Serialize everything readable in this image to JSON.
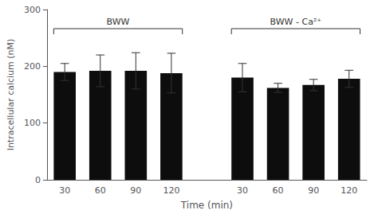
{
  "chart_data": {
    "type": "bar",
    "xlabel": "Time (min)",
    "ylabel": "Intracellular calcium (nM)",
    "series": [
      {
        "name": "BWW",
        "categories": [
          "30",
          "60",
          "90",
          "120"
        ],
        "values": [
          190,
          192,
          192,
          188
        ],
        "errors": [
          15,
          28,
          32,
          35
        ]
      },
      {
        "name": "BWW - Ca²⁺",
        "categories": [
          "30",
          "60",
          "90",
          "120"
        ],
        "values": [
          180,
          162,
          167,
          178
        ],
        "errors": [
          25,
          8,
          10,
          15
        ]
      }
    ],
    "color": "#0d0d0d",
    "ylim": [
      0,
      300
    ],
    "yticks": [
      0,
      100,
      200,
      300
    ],
    "grid": false
  }
}
